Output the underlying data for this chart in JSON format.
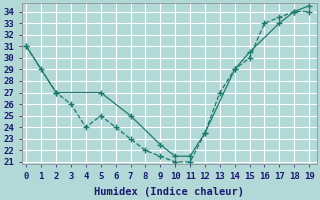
{
  "xlabel": "Humidex (Indice chaleur)",
  "bg_color": "#b2d8d8",
  "grid_color": "#ffffff",
  "line_color": "#1f7a6e",
  "line1_x": [
    0,
    1,
    2,
    3,
    4,
    5,
    6,
    7,
    8,
    9,
    10,
    11,
    12,
    13,
    14,
    15,
    16,
    17,
    18,
    19
  ],
  "line1_y": [
    31,
    29,
    27,
    26,
    24,
    25,
    24,
    23,
    22,
    21.5,
    21,
    21,
    23.5,
    27,
    29,
    30,
    33,
    33.5,
    34,
    34
  ],
  "line2_x": [
    0,
    2,
    5,
    7,
    9,
    10,
    11,
    12,
    14,
    15,
    17,
    18,
    19
  ],
  "line2_y": [
    31,
    27,
    27,
    25,
    22.5,
    21.5,
    21.5,
    23.5,
    29,
    30.5,
    33,
    34,
    34.5
  ],
  "ylim_min": 20.8,
  "ylim_max": 34.7,
  "xlim_min": -0.3,
  "xlim_max": 19.5,
  "yticks": [
    21,
    22,
    23,
    24,
    25,
    26,
    27,
    28,
    29,
    30,
    31,
    32,
    33,
    34
  ],
  "xticks": [
    0,
    1,
    2,
    3,
    4,
    5,
    6,
    7,
    8,
    9,
    10,
    11,
    12,
    13,
    14,
    15,
    16,
    17,
    18,
    19
  ],
  "tick_fontsize": 6.5,
  "xlabel_fontsize": 7.5
}
